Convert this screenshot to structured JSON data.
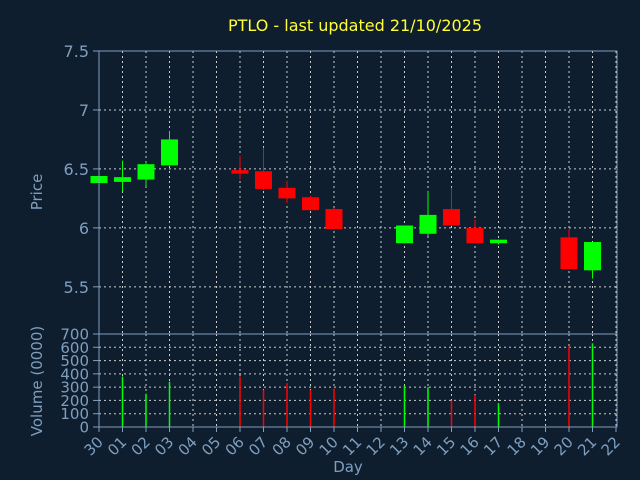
{
  "title": "PTLO - last updated 21/10/2025",
  "colors": {
    "background": "#0f1e2e",
    "title": "#ffff33",
    "axis_text": "#7f9fbf",
    "grid": "#cccccc",
    "axis_line": "#7f9fbf",
    "up": "#00ff00",
    "down": "#ff0000"
  },
  "chart_data": [
    {
      "type": "candlestick",
      "panel": "price",
      "ylabel": "Price",
      "ylim": [
        5.1,
        7.5
      ],
      "yticks": [
        "5.5",
        "6",
        "6.5",
        "7",
        "7.5"
      ],
      "grid": true,
      "candles": [
        {
          "day": "30",
          "open": 6.38,
          "close": 6.44,
          "high": 6.47,
          "low": 6.37
        },
        {
          "day": "01",
          "open": 6.39,
          "close": 6.43,
          "high": 6.57,
          "low": 6.31
        },
        {
          "day": "02",
          "open": 6.41,
          "close": 6.54,
          "high": 6.56,
          "low": 6.35
        },
        {
          "day": "03",
          "open": 6.53,
          "close": 6.75,
          "high": 6.82,
          "low": 6.53
        },
        {
          "day": "06",
          "open": 6.49,
          "close": 6.46,
          "high": 6.61,
          "low": 6.41
        },
        {
          "day": "07",
          "open": 6.48,
          "close": 6.33,
          "high": 6.68,
          "low": 6.32
        },
        {
          "day": "08",
          "open": 6.34,
          "close": 6.25,
          "high": 6.4,
          "low": 6.21
        },
        {
          "day": "09",
          "open": 6.26,
          "close": 6.15,
          "high": 6.27,
          "low": 6.15
        },
        {
          "day": "10",
          "open": 6.16,
          "close": 5.99,
          "high": 6.17,
          "low": 5.99
        },
        {
          "day": "13",
          "open": 5.87,
          "close": 6.02,
          "high": 6.02,
          "low": 5.87
        },
        {
          "day": "14",
          "open": 5.95,
          "close": 6.11,
          "high": 6.31,
          "low": 5.93
        },
        {
          "day": "15",
          "open": 6.16,
          "close": 6.02,
          "high": 6.34,
          "low": 6.02
        },
        {
          "day": "16",
          "open": 6.0,
          "close": 5.87,
          "high": 6.07,
          "low": 5.87
        },
        {
          "day": "17",
          "open": 5.87,
          "close": 5.9,
          "high": 5.9,
          "low": 5.86
        },
        {
          "day": "20",
          "open": 5.92,
          "close": 5.65,
          "high": 5.99,
          "low": 5.65
        },
        {
          "day": "21",
          "open": 5.64,
          "close": 5.88,
          "high": 5.88,
          "low": 5.57
        }
      ]
    },
    {
      "type": "bar",
      "panel": "volume",
      "xlabel": "Day",
      "ylabel": "Volume (0000)",
      "ylim": [
        0,
        700
      ],
      "yticks": [
        "0",
        "100",
        "200",
        "300",
        "400",
        "500",
        "600",
        "700"
      ],
      "grid": true,
      "xticks": [
        "30",
        "01",
        "02",
        "03",
        "04",
        "05",
        "06",
        "07",
        "08",
        "09",
        "10",
        "11",
        "12",
        "13",
        "14",
        "15",
        "16",
        "17",
        "18",
        "19",
        "20",
        "21",
        "22"
      ],
      "categories": [
        "30",
        "01",
        "02",
        "03",
        "06",
        "07",
        "08",
        "09",
        "10",
        "13",
        "14",
        "15",
        "16",
        "17",
        "20",
        "21"
      ],
      "values": [
        0,
        380,
        250,
        340,
        380,
        280,
        330,
        280,
        290,
        310,
        300,
        200,
        240,
        180,
        610,
        630
      ],
      "direction": [
        "up",
        "up",
        "up",
        "up",
        "down",
        "down",
        "down",
        "down",
        "down",
        "up",
        "up",
        "down",
        "down",
        "up",
        "down",
        "up"
      ]
    }
  ]
}
